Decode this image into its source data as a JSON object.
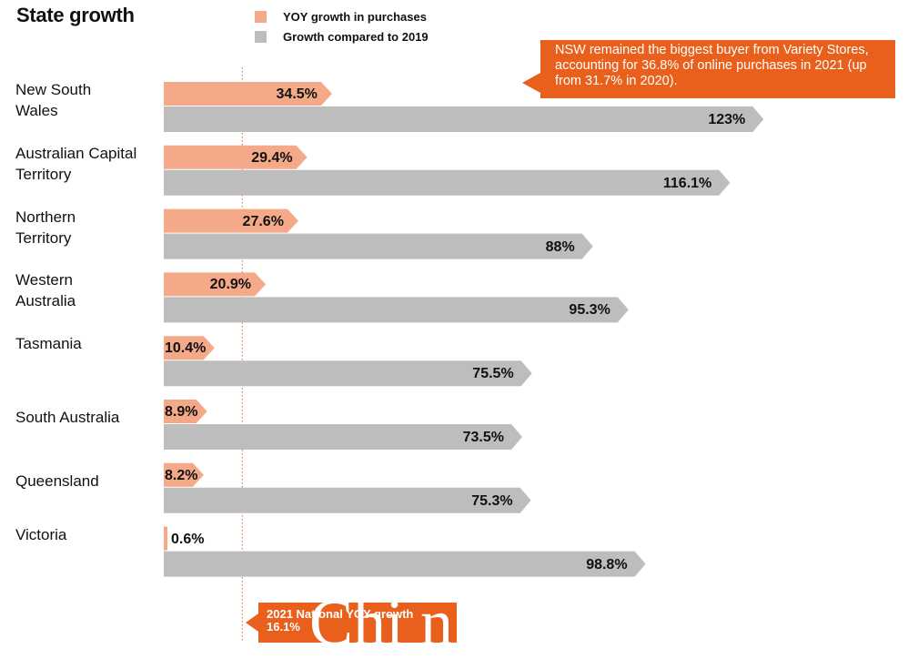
{
  "title": "State growth",
  "legend": [
    {
      "label": "YOY growth in purchases",
      "color": "#f4aa89"
    },
    {
      "label": "Growth compared to 2019",
      "color": "#bdbdbd"
    }
  ],
  "callout": {
    "text": "NSW remained the biggest buyer from Variety Stores, accounting for 36.8% of online purchases in 2021 (up from 31.7% in 2020).",
    "color": "#e8601c"
  },
  "national": {
    "label": "2021 National YOY growth",
    "value_label": "16.1%",
    "value": 16.1
  },
  "watermark": "Chi n",
  "chart_data": {
    "type": "bar",
    "orientation": "horizontal",
    "categories": [
      "New South Wales",
      "Australian Capital Territory",
      "Northern Territory",
      "Western Australia",
      "Tasmania",
      "South Australia",
      "Queensland",
      "Victoria"
    ],
    "category_lines": [
      [
        "New South",
        "Wales"
      ],
      [
        "Australian Capital",
        "Territory"
      ],
      [
        "Northern",
        "Territory"
      ],
      [
        "Western",
        "Australia"
      ],
      [
        "Tasmania"
      ],
      [
        "South Australia"
      ],
      [
        "Queensland"
      ],
      [
        "Victoria"
      ]
    ],
    "series": [
      {
        "name": "YOY growth in purchases",
        "color": "#f4aa89",
        "values": [
          34.5,
          29.4,
          27.6,
          20.9,
          10.4,
          8.9,
          8.2,
          0.6
        ],
        "labels": [
          "34.5%",
          "29.4%",
          "27.6%",
          "20.9%",
          "10.4%",
          "8.9%",
          "8.2%",
          "0.6%"
        ]
      },
      {
        "name": "Growth compared to 2019",
        "color": "#bdbdbd",
        "values": [
          123,
          116.1,
          88,
          95.3,
          75.5,
          73.5,
          75.3,
          98.8
        ],
        "labels": [
          "123%",
          "116.1%",
          "88%",
          "95.3%",
          "75.5%",
          "73.5%",
          "75.3%",
          "98.8%"
        ]
      }
    ],
    "reference_line": {
      "value": 16.1,
      "label": "2021 National YOY growth"
    },
    "legend_position": "top",
    "grid": false
  }
}
